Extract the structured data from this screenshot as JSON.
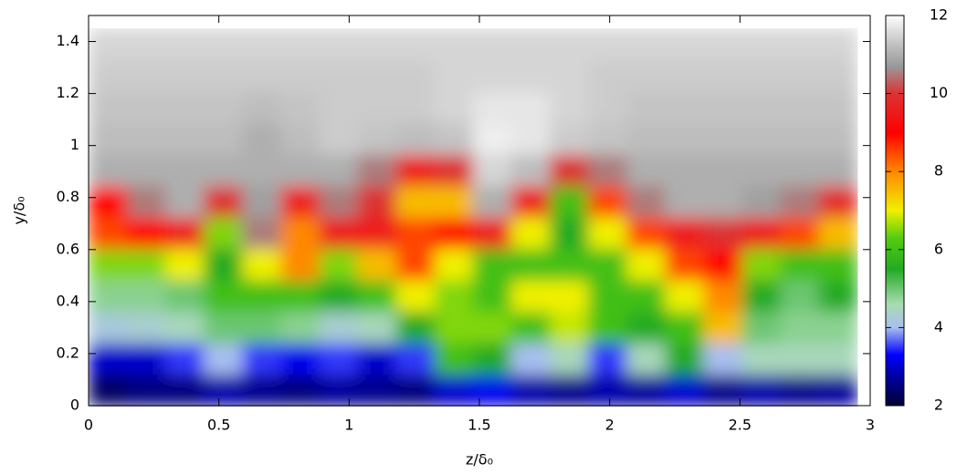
{
  "chart_data": {
    "type": "heatmap",
    "x_label": "z/δ₀",
    "y_label": "y/δ₀",
    "xlim": [
      0,
      3
    ],
    "ylim": [
      0,
      1.5
    ],
    "xticks": [
      0,
      0.5,
      1,
      1.5,
      2,
      2.5,
      3
    ],
    "yticks": [
      0,
      0.2,
      0.4,
      0.6,
      0.8,
      1,
      1.2,
      1.4
    ],
    "clim": [
      2,
      12
    ],
    "cticks": [
      2,
      4,
      6,
      8,
      10,
      12
    ],
    "colormap": [
      [
        2,
        "#000033"
      ],
      [
        2.8,
        "#0000aa"
      ],
      [
        3.3,
        "#0000ff"
      ],
      [
        4,
        "#a8bff0"
      ],
      [
        4.6,
        "#a8dcb0"
      ],
      [
        5.5,
        "#22aa22"
      ],
      [
        6.3,
        "#55cc11"
      ],
      [
        7,
        "#f0f000"
      ],
      [
        8,
        "#ff8800"
      ],
      [
        9,
        "#ff0000"
      ],
      [
        10,
        "#dd3333"
      ],
      [
        10.7,
        "#999999"
      ],
      [
        11.3,
        "#c4c4c4"
      ],
      [
        12,
        "#ffffff"
      ]
    ],
    "x": [
      0.074,
      0.221,
      0.369,
      0.516,
      0.664,
      0.811,
      0.959,
      1.106,
      1.254,
      1.401,
      1.549,
      1.696,
      1.844,
      1.991,
      2.139,
      2.286,
      2.434,
      2.581,
      2.729,
      2.876
    ],
    "y": [
      0.06,
      0.181,
      0.302,
      0.423,
      0.544,
      0.665,
      0.785,
      0.906,
      1.027,
      1.148,
      1.269,
      1.39
    ],
    "z": [
      [
        2.3,
        2.5,
        2.5,
        2.8,
        2.6,
        2.5,
        2.7,
        2.6,
        2.5,
        3,
        3.2,
        2.8,
        2.6,
        2.8,
        2.7,
        3,
        2.6,
        2.8,
        2.6,
        2.7
      ],
      [
        3,
        3,
        3.5,
        4,
        3.5,
        3.2,
        3.5,
        3,
        3.5,
        6,
        5.5,
        4,
        4.5,
        3.5,
        4.5,
        5.5,
        4,
        4.5,
        4.5,
        4.5
      ],
      [
        4.2,
        4.3,
        4.5,
        5,
        5,
        4.8,
        4.3,
        4.5,
        5.5,
        6.5,
        6.5,
        6,
        6.8,
        6,
        5.5,
        6,
        7.5,
        5,
        4.8,
        4.8
      ],
      [
        4.8,
        4.8,
        5,
        6,
        6,
        6,
        5.5,
        6,
        7,
        6.5,
        6,
        7,
        7,
        6,
        6,
        7,
        8,
        5.5,
        5,
        5.5
      ],
      [
        6.5,
        6.5,
        7,
        5.5,
        7,
        8,
        6.5,
        7.5,
        8.5,
        7,
        6,
        6,
        6,
        6,
        7,
        8.5,
        9,
        6.5,
        6,
        6
      ],
      [
        8.5,
        9,
        9.5,
        6.5,
        10.5,
        8,
        9.5,
        9.5,
        8.5,
        9,
        9.5,
        7,
        5.5,
        7,
        8.5,
        9.5,
        10,
        9.5,
        8.5,
        7.5
      ],
      [
        9,
        10.5,
        11,
        10,
        10.8,
        9.5,
        10.5,
        10,
        7.5,
        7.5,
        11,
        9.5,
        6,
        8.5,
        10.5,
        11,
        11,
        10.8,
        10.5,
        9.8
      ],
      [
        11,
        11,
        11,
        11,
        11,
        11,
        11,
        10.5,
        9.5,
        10,
        11.5,
        11.2,
        10,
        10.5,
        11,
        11,
        11,
        11,
        11,
        11
      ],
      [
        11.2,
        11.2,
        11.2,
        11.2,
        11,
        11.2,
        11.4,
        11.3,
        11.2,
        11.3,
        11.8,
        11.7,
        11.4,
        11.3,
        11.2,
        11.2,
        11.2,
        11.2,
        11.2,
        11.2
      ],
      [
        11.3,
        11.3,
        11.3,
        11.3,
        11.2,
        11.3,
        11.4,
        11.4,
        11.4,
        11.5,
        11.7,
        11.7,
        11.5,
        11.4,
        11.3,
        11.3,
        11.3,
        11.3,
        11.3,
        11.3
      ],
      [
        11.4,
        11.4,
        11.4,
        11.4,
        11.4,
        11.4,
        11.4,
        11.4,
        11.4,
        11.5,
        11.5,
        11.5,
        11.5,
        11.4,
        11.4,
        11.4,
        11.4,
        11.4,
        11.4,
        11.4
      ],
      [
        11.5,
        11.5,
        11.5,
        11.5,
        11.5,
        11.5,
        11.5,
        11.5,
        11.5,
        11.5,
        11.5,
        11.5,
        11.5,
        11.5,
        11.5,
        11.5,
        11.5,
        11.5,
        11.5,
        11.5
      ]
    ]
  }
}
